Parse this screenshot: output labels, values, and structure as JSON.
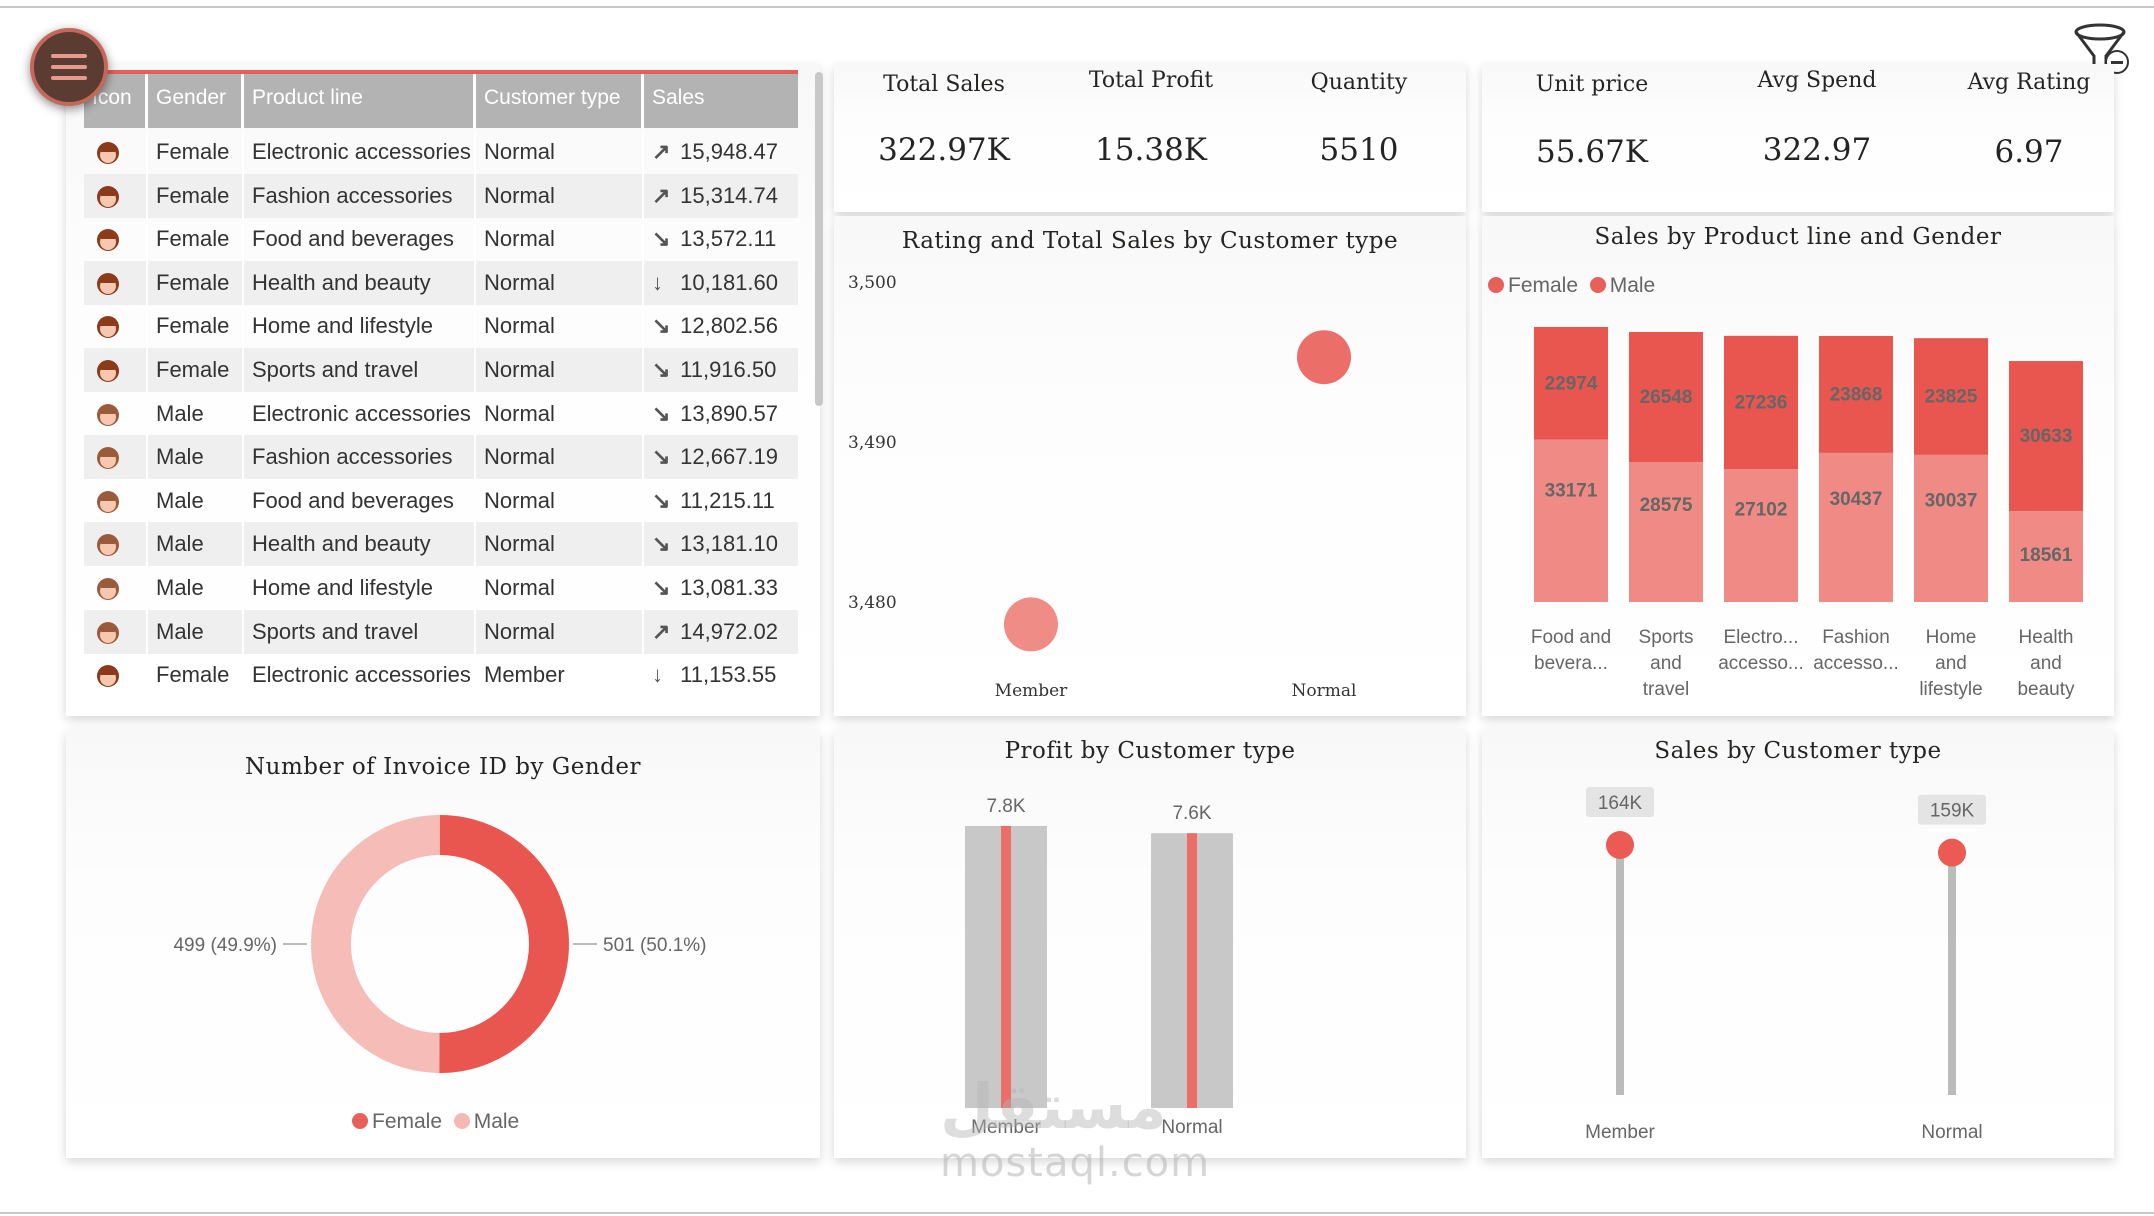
{
  "table": {
    "columns": [
      "Icon",
      "Gender",
      "Product line",
      "Customer type",
      "Sales"
    ],
    "rows": [
      {
        "gender": "Female",
        "product": "Electronic accessories",
        "ctype": "Normal",
        "trend": "up-right",
        "sales": "15,948.47"
      },
      {
        "gender": "Female",
        "product": "Fashion accessories",
        "ctype": "Normal",
        "trend": "up-right",
        "sales": "15,314.74"
      },
      {
        "gender": "Female",
        "product": "Food and beverages",
        "ctype": "Normal",
        "trend": "down-right",
        "sales": "13,572.11"
      },
      {
        "gender": "Female",
        "product": "Health and beauty",
        "ctype": "Normal",
        "trend": "down",
        "sales": "10,181.60"
      },
      {
        "gender": "Female",
        "product": "Home and lifestyle",
        "ctype": "Normal",
        "trend": "down-right",
        "sales": "12,802.56"
      },
      {
        "gender": "Female",
        "product": "Sports and travel",
        "ctype": "Normal",
        "trend": "down-right",
        "sales": "11,916.50"
      },
      {
        "gender": "Male",
        "product": "Electronic accessories",
        "ctype": "Normal",
        "trend": "down-right",
        "sales": "13,890.57"
      },
      {
        "gender": "Male",
        "product": "Fashion accessories",
        "ctype": "Normal",
        "trend": "down-right",
        "sales": "12,667.19"
      },
      {
        "gender": "Male",
        "product": "Food and beverages",
        "ctype": "Normal",
        "trend": "down-right",
        "sales": "11,215.11"
      },
      {
        "gender": "Male",
        "product": "Health and beauty",
        "ctype": "Normal",
        "trend": "down-right",
        "sales": "13,181.10"
      },
      {
        "gender": "Male",
        "product": "Home and lifestyle",
        "ctype": "Normal",
        "trend": "down-right",
        "sales": "13,081.33"
      },
      {
        "gender": "Male",
        "product": "Sports and travel",
        "ctype": "Normal",
        "trend": "up-right",
        "sales": "14,972.02"
      },
      {
        "gender": "Female",
        "product": "Electronic accessories",
        "ctype": "Member",
        "trend": "down",
        "sales": "11,153.55"
      }
    ]
  },
  "kpis1": [
    {
      "label": "Total Sales",
      "value": "322.97K"
    },
    {
      "label": "Total Profit",
      "value": "15.38K"
    },
    {
      "label": "Quantity",
      "value": "5510"
    }
  ],
  "kpis2": [
    {
      "label": "Unit price",
      "value": "55.67K"
    },
    {
      "label": "Avg Spend",
      "value": "322.97"
    },
    {
      "label": "Avg Rating",
      "value": "6.97"
    }
  ],
  "colors": {
    "female": "#e8605a",
    "male": "#f0a8a4",
    "accent": "#e55f58",
    "grey": "#c8c8c8"
  },
  "chart_data": [
    {
      "id": "rating_sales",
      "type": "scatter",
      "title": "Rating and Total Sales by Customer type",
      "categories": [
        "Member",
        "Normal"
      ],
      "y": [
        3478.6,
        3495.3
      ],
      "yticks": [
        "3,500",
        "3,490",
        "3,480"
      ],
      "ylim": [
        3477,
        3500
      ]
    },
    {
      "id": "product_gender",
      "type": "bar",
      "stacked": true,
      "title": "Sales by Product line and Gender",
      "legend": [
        "Female",
        "Male"
      ],
      "categories": [
        "Food and bevera...",
        "Sports and travel",
        "Electro... accesso...",
        "Fashion accesso...",
        "Home and lifestyle",
        "Health and beauty"
      ],
      "series": [
        {
          "name": "Female",
          "values": [
            33171,
            28575,
            27102,
            30437,
            30037,
            18561
          ]
        },
        {
          "name": "Male",
          "values": [
            22974,
            26548,
            27236,
            23868,
            23825,
            30633
          ]
        }
      ]
    },
    {
      "id": "invoice_gender",
      "type": "pie",
      "donut": true,
      "title": "Number of Invoice ID by Gender",
      "legend": [
        "Female",
        "Male"
      ],
      "slices": [
        {
          "name": "Female",
          "value": 501,
          "label": "501 (50.1%)"
        },
        {
          "name": "Male",
          "value": 499,
          "label": "499 (49.9%)"
        }
      ]
    },
    {
      "id": "profit_ctype",
      "type": "bar",
      "title": "Profit by Customer type",
      "categories": [
        "Member",
        "Normal"
      ],
      "values": [
        7.8,
        7.6
      ],
      "value_labels": [
        "7.8K",
        "7.6K"
      ]
    },
    {
      "id": "sales_ctype",
      "type": "bar",
      "title": "Sales by Customer type",
      "categories": [
        "Member",
        "Normal"
      ],
      "values": [
        164,
        159
      ],
      "value_labels": [
        "164K",
        "159K"
      ]
    }
  ],
  "watermark": {
    "text": "mostaql.com",
    "arabic": "مستقل"
  }
}
